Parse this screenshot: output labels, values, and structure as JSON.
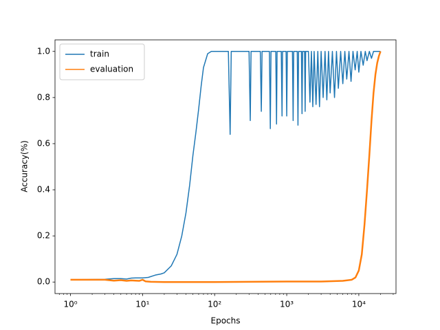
{
  "chart_data": {
    "type": "line",
    "xlabel": "Epochs",
    "ylabel": "Accuracy(%)",
    "xscale": "log",
    "legend": "upper left",
    "xlim": [
      0.61,
      32800
    ],
    "ylim": [
      -0.05,
      1.05
    ],
    "xticks": [
      {
        "value": 1,
        "label": "10⁰"
      },
      {
        "value": 10,
        "label": "10¹"
      },
      {
        "value": 100,
        "label": "10²"
      },
      {
        "value": 1000,
        "label": "10³"
      },
      {
        "value": 10000,
        "label": "10⁴"
      }
    ],
    "xminorticks": [
      0.7,
      0.8,
      0.9,
      2,
      3,
      4,
      5,
      6,
      7,
      8,
      9,
      20,
      30,
      40,
      50,
      60,
      70,
      80,
      90,
      200,
      300,
      400,
      500,
      600,
      700,
      800,
      900,
      2000,
      3000,
      4000,
      5000,
      6000,
      7000,
      8000,
      9000,
      20000,
      30000
    ],
    "yticks": [
      {
        "value": 0,
        "label": "0.0"
      },
      0.2,
      0.4,
      0.6,
      0.8,
      {
        "value": 1,
        "label": "1.0"
      }
    ],
    "series": [
      {
        "name": "train",
        "color": "#1f77b4",
        "x": [
          1,
          2,
          3,
          4,
          5,
          6,
          7,
          8,
          9,
          10,
          12,
          15,
          18,
          20,
          25,
          30,
          35,
          40,
          45,
          50,
          55,
          60,
          65,
          70,
          80,
          90,
          155,
          164,
          170,
          300,
          312,
          320,
          430,
          444,
          455,
          575,
          592,
          605,
          705,
          722,
          735,
          840,
          861,
          875,
          980,
          1000,
          1020,
          1200,
          1227,
          1250,
          1400,
          1432,
          1460,
          1600,
          1630,
          1660,
          1770,
          1800,
          1830,
          2000,
          2100,
          2200,
          2300,
          2400,
          2550,
          2700,
          2850,
          3000,
          3200,
          3400,
          3600,
          3800,
          4000,
          4300,
          4600,
          4900,
          5200,
          5600,
          6000,
          6400,
          6800,
          7300,
          7800,
          8300,
          8900,
          9500,
          10000,
          10700,
          11500,
          12300,
          13000,
          14000,
          15000,
          16000,
          20000
        ],
        "values": [
          0.01,
          0.011,
          0.012,
          0.015,
          0.015,
          0.013,
          0.017,
          0.018,
          0.018,
          0.018,
          0.02,
          0.03,
          0.035,
          0.04,
          0.07,
          0.12,
          0.2,
          0.3,
          0.42,
          0.55,
          0.65,
          0.75,
          0.85,
          0.93,
          0.99,
          1.0,
          1.0,
          0.64,
          1.0,
          1.0,
          0.7,
          1.0,
          1.0,
          0.74,
          1.0,
          1.0,
          0.665,
          1.0,
          1.0,
          0.685,
          1.0,
          1.0,
          0.72,
          1.0,
          1.0,
          0.72,
          1.0,
          1.0,
          0.7,
          1.0,
          1.0,
          0.68,
          1.0,
          1.0,
          0.73,
          1.0,
          1.0,
          0.74,
          1.0,
          1.0,
          0.78,
          1.0,
          0.76,
          1.0,
          0.77,
          1.0,
          0.76,
          1.0,
          0.8,
          1.0,
          0.79,
          1.0,
          0.82,
          1.0,
          0.8,
          1.0,
          0.84,
          1.0,
          0.86,
          1.0,
          0.88,
          1.0,
          0.87,
          1.0,
          0.92,
          1.0,
          0.91,
          1.0,
          0.94,
          1.0,
          0.96,
          1.0,
          0.97,
          1.0,
          1.0
        ]
      },
      {
        "name": "evaluation",
        "color": "#ff7f0e",
        "x": [
          1,
          3,
          4,
          5,
          6,
          7,
          8,
          9,
          10,
          11,
          13,
          20,
          100,
          1000,
          3000,
          6000,
          8000,
          9000,
          10000,
          11000,
          12000,
          13000,
          14000,
          15000,
          16000,
          17000,
          18000,
          19000,
          20000
        ],
        "values": [
          0.01,
          0.01,
          0.006,
          0.008,
          0.005,
          0.007,
          0.006,
          0.005,
          0.01,
          0.003,
          0.001,
          0.0,
          0.0,
          0.002,
          0.002,
          0.005,
          0.01,
          0.02,
          0.05,
          0.12,
          0.25,
          0.4,
          0.55,
          0.7,
          0.82,
          0.9,
          0.95,
          0.98,
          1.0
        ]
      }
    ]
  }
}
